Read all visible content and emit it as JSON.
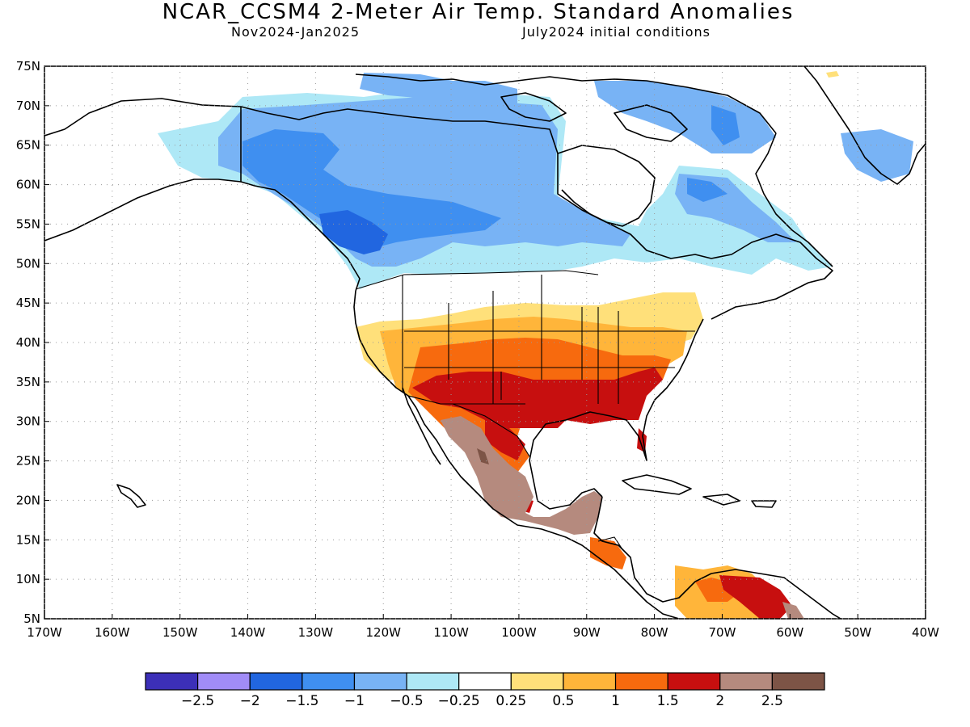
{
  "header": {
    "title": "NCAR_CCSM4 2-Meter Air Temp. Standard Anomalies",
    "period": "Nov2024-Jan2025",
    "init": "July2024 initial conditions"
  },
  "axes": {
    "lat_labels": [
      "75N",
      "70N",
      "65N",
      "60N",
      "55N",
      "50N",
      "45N",
      "40N",
      "35N",
      "30N",
      "25N",
      "20N",
      "15N",
      "10N",
      "5N"
    ],
    "lon_labels": [
      "170W",
      "160W",
      "150W",
      "140W",
      "130W",
      "120W",
      "110W",
      "100W",
      "90W",
      "80W",
      "70W",
      "60W",
      "50W",
      "40W"
    ]
  },
  "colorbar": {
    "colors": [
      "#3c2fb8",
      "#a18cf7",
      "#2166e0",
      "#3f8ff0",
      "#78b3f5",
      "#aee8f6",
      "#ffffff",
      "#ffe07a",
      "#ffb53a",
      "#f76a0e",
      "#c70f0f",
      "#b58a7e",
      "#7d5446"
    ],
    "labels": [
      "-2.5",
      "-2",
      "-1.5",
      "-1",
      "-0.5",
      "-0.25",
      "0.25",
      "0.5",
      "1",
      "1.5",
      "2",
      "2.5"
    ]
  }
}
